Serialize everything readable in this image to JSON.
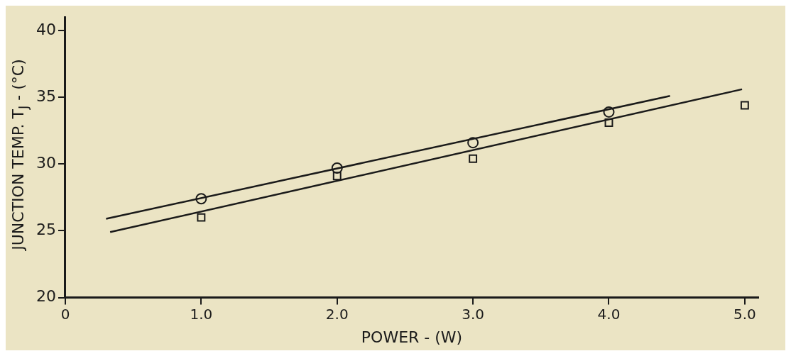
{
  "chart_data": {
    "type": "scatter",
    "xlabel": "POWER - (W)",
    "ylabel": "JUNCTION TEMP. T$_{J}$ - (°C)",
    "xlim": [
      0,
      5.1
    ],
    "xticks": [
      0,
      {
        "value": 1,
        "label": "1.0"
      },
      {
        "value": 2,
        "label": "2.0"
      },
      {
        "value": 3,
        "label": "3.0"
      },
      {
        "value": 4,
        "label": "4.0"
      },
      {
        "value": 5,
        "label": "5.0"
      }
    ],
    "ylim": [
      20,
      41
    ],
    "yticks": [
      20,
      25,
      30,
      35,
      40
    ],
    "grid": false,
    "legend": false,
    "series": [
      {
        "type": "scatter",
        "marker": "circle",
        "color": "#1a1a1a",
        "x": [
          1,
          2,
          3,
          4
        ],
        "values": [
          27.4,
          29.7,
          31.6,
          33.9
        ]
      },
      {
        "type": "scatter",
        "marker": "square",
        "color": "#1a1a1a",
        "x": [
          1,
          2,
          3,
          4,
          5
        ],
        "values": [
          26.0,
          29.1,
          30.4,
          33.1,
          34.4
        ]
      },
      {
        "type": "line",
        "marker": "none",
        "color": "#1a1a1a",
        "x": [
          0.3,
          4.45
        ],
        "values": [
          25.9,
          35.1
        ]
      },
      {
        "type": "line",
        "marker": "none",
        "color": "#1a1a1a",
        "x": [
          0.33,
          4.98
        ],
        "values": [
          24.9,
          35.6
        ]
      }
    ]
  }
}
